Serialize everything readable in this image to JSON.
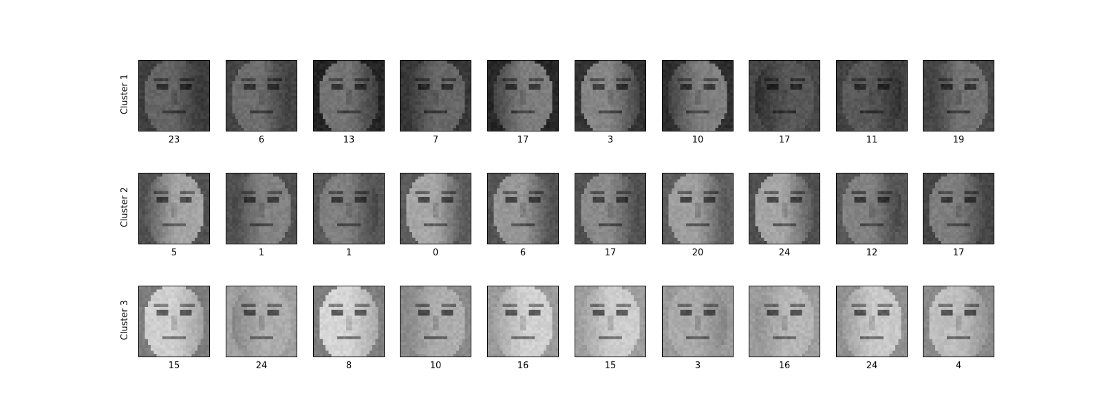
{
  "figure": {
    "rows": [
      {
        "label": "Cluster 1",
        "captions": [
          "23",
          "6",
          "13",
          "7",
          "17",
          "3",
          "10",
          "17",
          "11",
          "19"
        ]
      },
      {
        "label": "Cluster 2",
        "captions": [
          "5",
          "1",
          "1",
          "0",
          "6",
          "17",
          "20",
          "24",
          "12",
          "17"
        ]
      },
      {
        "label": "Cluster 3",
        "captions": [
          "15",
          "24",
          "8",
          "10",
          "16",
          "15",
          "3",
          "16",
          "24",
          "4"
        ]
      }
    ],
    "image_style": "grayscale face thumbnails"
  }
}
